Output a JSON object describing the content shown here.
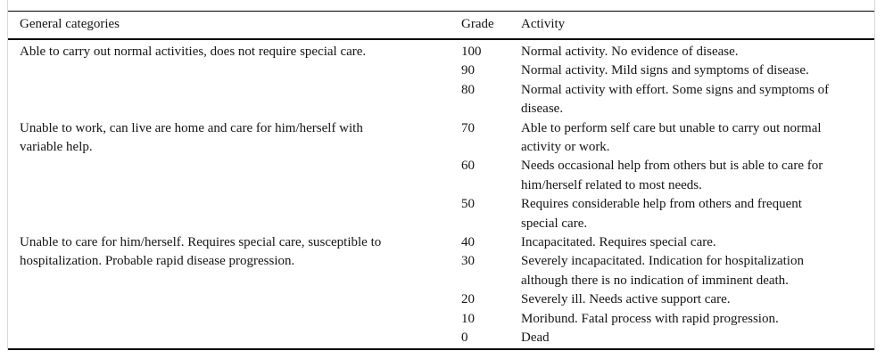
{
  "table": {
    "columns": [
      {
        "label": "General categories"
      },
      {
        "label": "Grade"
      },
      {
        "label": "Activity"
      }
    ],
    "groups": [
      {
        "category": "Able to carry out normal activities, does not require special care.",
        "rows": [
          {
            "grade": "100",
            "activity": "Normal activity. No evidence of disease."
          },
          {
            "grade": "90",
            "activity": "Normal activity. Mild signs and symptoms of disease."
          },
          {
            "grade": "80",
            "activity": "Normal activity with effort. Some signs and symptoms of\ndisease."
          }
        ]
      },
      {
        "category": "Unable to work, can live are home and care for him/herself with\nvariable help.",
        "rows": [
          {
            "grade": "70",
            "activity": "Able to perform self care but unable to carry out normal\nactivity or work."
          },
          {
            "grade": "60",
            "activity": "Needs occasional help from others but is able to care for\nhim/herself related to most needs."
          },
          {
            "grade": "50",
            "activity": "Requires considerable help from others and frequent\nspecial care."
          }
        ]
      },
      {
        "category": "Unable to care for him/herself. Requires special care, susceptible to\nhospitalization. Probable rapid disease progression.",
        "rows": [
          {
            "grade": "40",
            "activity": "Incapacitated. Requires special care."
          },
          {
            "grade": "30",
            "activity": "Severely incapacitated. Indication for hospitalization\nalthough there is no indication of imminent death."
          },
          {
            "grade": "20",
            "activity": "Severely ill. Needs active support care."
          },
          {
            "grade": "10",
            "activity": "Moribund. Fatal process with rapid progression."
          },
          {
            "grade": "0",
            "activity": "Dead"
          }
        ]
      }
    ]
  }
}
